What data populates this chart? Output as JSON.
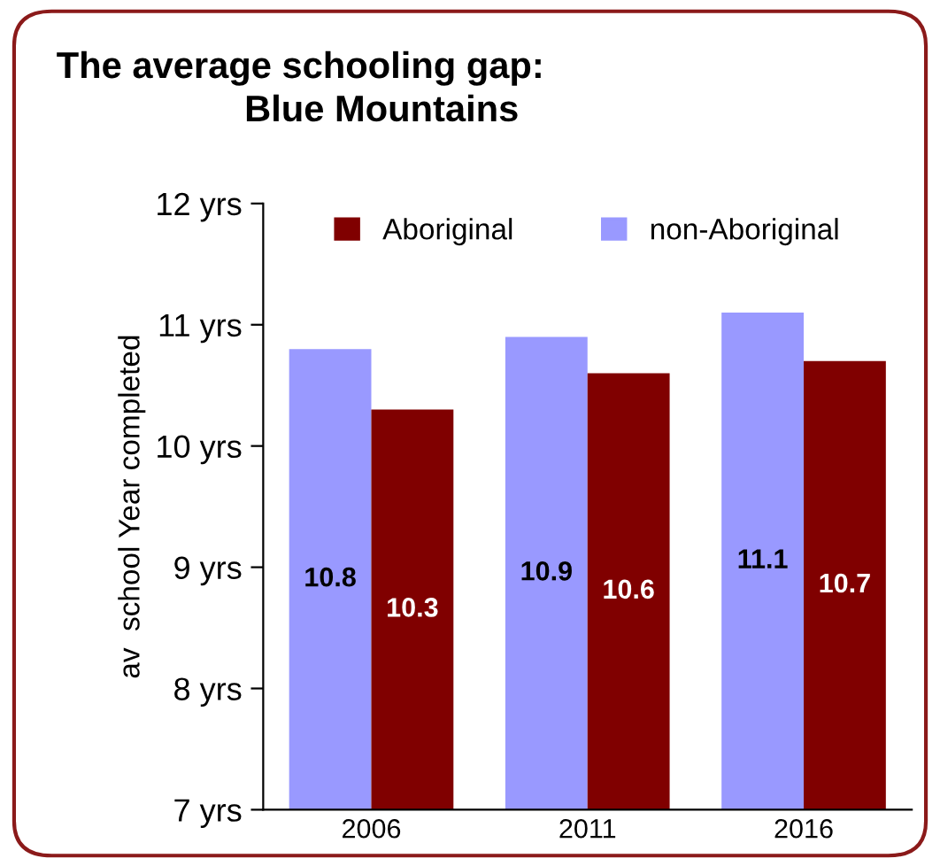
{
  "chart_data": {
    "type": "bar",
    "title": "The average schooling gap:",
    "subtitle": "Blue Mountains",
    "ylabel": "av  school Year completed",
    "categories": [
      "2006",
      "2011",
      "2016"
    ],
    "series": [
      {
        "name": "non-Aboriginal",
        "color": "#9999ff",
        "values": [
          10.8,
          10.9,
          11.1
        ]
      },
      {
        "name": "Aboriginal",
        "color": "#800000",
        "values": [
          10.3,
          10.6,
          10.7
        ]
      }
    ],
    "ylim": [
      7,
      12
    ],
    "yticks": [
      {
        "value": 7,
        "label": "7 yrs"
      },
      {
        "value": 8,
        "label": "8 yrs"
      },
      {
        "value": 9,
        "label": "9 yrs"
      },
      {
        "value": 10,
        "label": "10 yrs"
      },
      {
        "value": 11,
        "label": "11 yrs"
      },
      {
        "value": 12,
        "label": "12 yrs"
      }
    ],
    "data_labels": true,
    "legend": "top",
    "grid": false
  }
}
